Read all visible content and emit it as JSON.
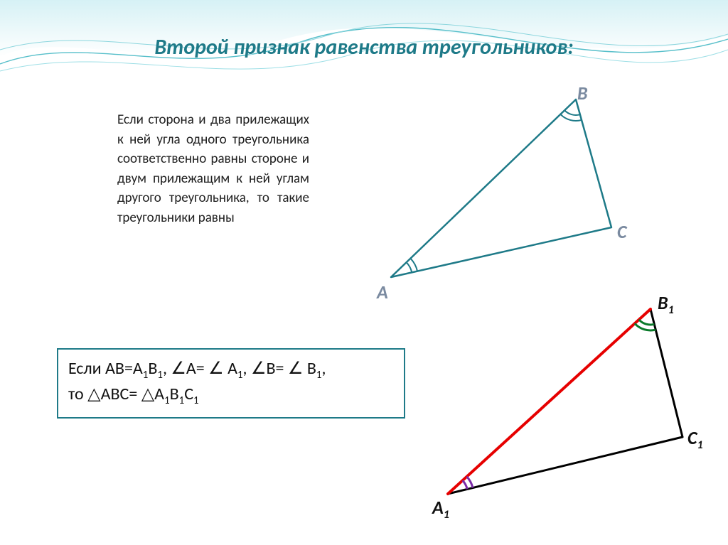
{
  "title": "Второй признак равенства треугольников:",
  "title_color": "#1e7a88",
  "body": "Если сторона и два прилежащих к ней угла одного треугольника соответственно равны стороне и двум прилежащим к ней углам другого треугольника, то такие треугольники равны",
  "theorem": {
    "line1_prefix": "Если AB=A",
    "line1_b1": "B",
    "line1_mid": ", ",
    "line1_angA": "A= ",
    "line1_A1": " A",
    "line1_mid2": ", ",
    "line1_angB": "B= ",
    "line1_B1": " B",
    "line1_comma": ",",
    "line2_prefix": "то ",
    "line2_abc": "ABC= ",
    "line2_a1b1c1_A": "A",
    "line2_a1b1c1_B": "B",
    "line2_a1b1c1_C": "C",
    "border_color": "#1e7a88"
  },
  "symbols": {
    "angle": "∠",
    "triangle": "△",
    "sub1": "1"
  },
  "triangle1": {
    "vertices": {
      "A": [
        60,
        270
      ],
      "B": [
        320,
        20
      ],
      "C": [
        370,
        200
      ]
    },
    "label_A": "A",
    "label_B": "B",
    "label_C": "C",
    "label_pos": {
      "A": [
        40,
        275
      ],
      "B": [
        322,
        -5
      ],
      "C": [
        378,
        190
      ]
    },
    "stroke": "#1e7a88",
    "stroke_width": 2.5,
    "angle_arc_color": "#1e7a88",
    "angle_A_r": [
      38,
      30
    ],
    "angle_B_r": [
      30,
      22
    ]
  },
  "triangle2": {
    "vertices": {
      "A1": [
        35,
        280
      ],
      "B1": [
        320,
        20
      ],
      "C1": [
        365,
        200
      ]
    },
    "label_A1": "A",
    "label_B1": "B",
    "label_C1": "C",
    "label_pos": {
      "A1": [
        13,
        283
      ],
      "B1": [
        330,
        -5
      ],
      "C1": [
        372,
        185
      ]
    },
    "stroke_black": "#000000",
    "stroke_red": "#e60000",
    "stroke_width": 3,
    "red_width": 4,
    "angle_A_color": "#7a2aa6",
    "angle_B_color": "#0a7a2a",
    "angle_A_r": [
      36,
      28
    ],
    "angle_B_r": [
      30,
      22
    ]
  },
  "wave": {
    "gradient_from": "#bfe8ee",
    "gradient_to": "#ffffff",
    "line_color": "#4ab5c5"
  },
  "background_color": "#ffffff"
}
